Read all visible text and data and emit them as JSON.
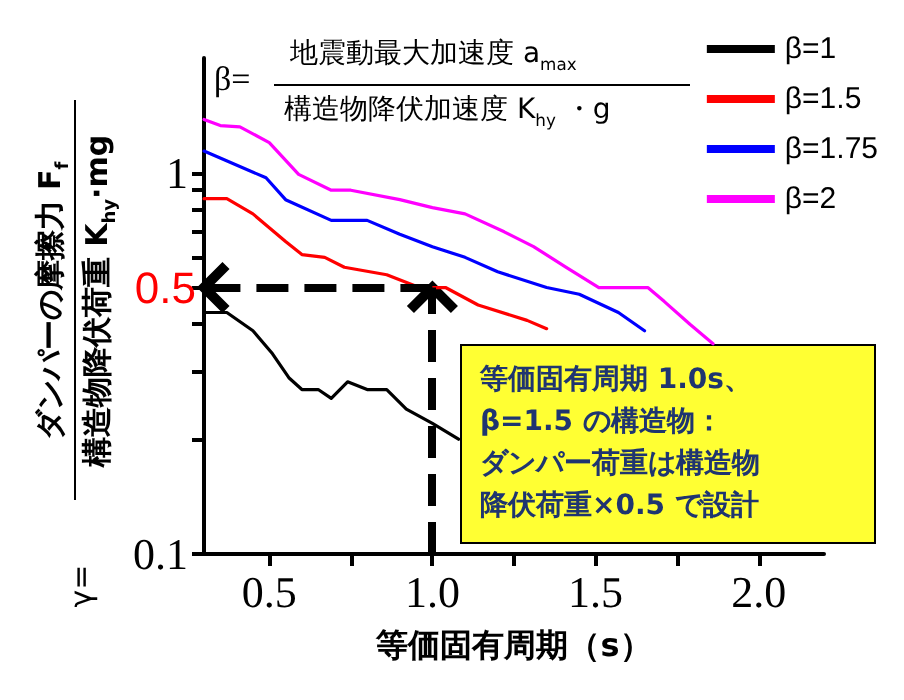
{
  "chart_data": {
    "type": "line",
    "xlabel": "等価固有周期（s）",
    "ylabel": "ダンパーの摩擦力 F$_{f}$",
    "annotations": [
      "構造物降伏荷重 K$_{hy}$·mg",
      "γ=",
      "β=",
      "地震動最大加速度 a$_{max}$",
      "構造物降伏加速度 K$_{hy}$ ・g",
      "等価固有周期 1.0s、",
      "β=1.5 の構造物：",
      "ダンパー荷重は構造物",
      "降伏荷重×0.5 で設計"
    ],
    "series": [
      {
        "name": "β=1",
        "color": "#000000",
        "x": [
          0.3,
          0.37,
          0.45,
          0.51,
          0.56,
          0.6,
          0.65,
          0.69,
          0.74,
          0.8,
          0.86,
          0.92,
          1.0,
          1.08
        ],
        "values": [
          0.43,
          0.43,
          0.385,
          0.335,
          0.29,
          0.27,
          0.27,
          0.256,
          0.283,
          0.27,
          0.27,
          0.24,
          0.22,
          0.2
        ]
      },
      {
        "name": "β=1.5",
        "color": "#ff0000",
        "x": [
          0.3,
          0.37,
          0.45,
          0.55,
          0.6,
          0.67,
          0.73,
          0.86,
          0.96,
          1.04,
          1.14,
          1.29,
          1.35
        ],
        "values": [
          0.855,
          0.855,
          0.78,
          0.66,
          0.61,
          0.6,
          0.565,
          0.54,
          0.5,
          0.5,
          0.45,
          0.41,
          0.39
        ]
      },
      {
        "name": "β=1.75",
        "color": "#0000ff",
        "x": [
          0.3,
          0.49,
          0.55,
          0.69,
          0.8,
          0.9,
          1.0,
          1.1,
          1.2,
          1.35,
          1.45,
          1.57,
          1.65
        ],
        "values": [
          1.14,
          0.97,
          0.85,
          0.75,
          0.75,
          0.69,
          0.64,
          0.6,
          0.55,
          0.5,
          0.48,
          0.43,
          0.385
        ]
      },
      {
        "name": "β=2",
        "color": "#ff00ff",
        "x": [
          0.3,
          0.35,
          0.41,
          0.5,
          0.59,
          0.69,
          0.75,
          0.9,
          1.0,
          1.1,
          1.22,
          1.31,
          1.41,
          1.51,
          1.59,
          1.66,
          1.71,
          1.79,
          1.86
        ],
        "values": [
          1.38,
          1.33,
          1.32,
          1.2,
          0.99,
          0.9,
          0.9,
          0.85,
          0.81,
          0.78,
          0.7,
          0.64,
          0.565,
          0.5,
          0.5,
          0.5,
          0.46,
          0.4,
          0.356
        ]
      }
    ],
    "xlim": [
      0.3,
      2.2
    ],
    "xticks": [
      {
        "value": 0.5,
        "label": "0.5"
      },
      {
        "value": 0.75,
        "label": null
      },
      {
        "value": 1.0,
        "label": "1.0"
      },
      {
        "value": 1.25,
        "label": null
      },
      {
        "value": 1.5,
        "label": "1.5"
      },
      {
        "value": 1.75,
        "label": null
      },
      {
        "value": 2.0,
        "label": "2.0"
      }
    ],
    "ylim": [
      0.1,
      2
    ],
    "yticks": [
      0.1,
      {
        "value": 0.2,
        "label": null
      },
      {
        "value": 0.3,
        "label": null
      },
      {
        "value": 0.4,
        "label": null
      },
      {
        "value": 0.5,
        "label": null
      },
      {
        "value": 0.6,
        "label": null
      },
      {
        "value": 0.7,
        "label": null
      },
      {
        "value": 0.8,
        "label": null
      },
      {
        "value": 0.9,
        "label": null
      },
      1
    ],
    "log": "y",
    "ref_lines": [
      {
        "axis": "x",
        "value": 1.0,
        "color": "#000000",
        "line_style": "dashed"
      },
      {
        "axis": "y",
        "value": 0.5,
        "label": "0.5",
        "color": "#000000",
        "line_style": "dashed"
      }
    ],
    "legend": "top right",
    "grid": false,
    "marker": "none",
    "line_style": "solid"
  }
}
